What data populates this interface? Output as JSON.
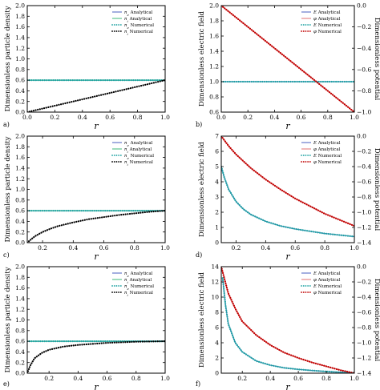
{
  "chart_data": [
    {
      "panel_label": "a)",
      "type": "line",
      "xlabel": "r",
      "ylabel": "Dimensionless particle density",
      "xlim": [
        0.0,
        1.0
      ],
      "ylim": [
        0.0,
        2.0
      ],
      "xticks": [
        "0.0",
        "0.2",
        "0.4",
        "0.6",
        "0.8",
        "1.0"
      ],
      "yticks": [
        "0.0",
        "0.2",
        "0.4",
        "0.6",
        "0.8",
        "1.0",
        "1.2",
        "1.4",
        "1.6",
        "1.8",
        "2.0"
      ],
      "legend_position": "upper-right",
      "series": [
        {
          "name": "n_e Analytical",
          "style": "solid",
          "color": "#4a5fc1",
          "axis": "left",
          "x": [
            0.0,
            0.2,
            0.4,
            0.6,
            0.8,
            1.0
          ],
          "y": [
            0.6,
            0.6,
            0.6,
            0.6,
            0.6,
            0.6
          ]
        },
        {
          "name": "n_i Analytical",
          "style": "solid",
          "color": "#3cb878",
          "axis": "left",
          "x": [
            0.0,
            0.2,
            0.4,
            0.6,
            0.8,
            1.0
          ],
          "y": [
            0.6,
            0.6,
            0.6,
            0.6,
            0.6,
            0.6
          ]
        },
        {
          "name": "n_e Numerical",
          "style": "dotted",
          "color": "#1fa3a3",
          "axis": "left",
          "x": [
            0.0,
            0.2,
            0.4,
            0.6,
            0.8,
            1.0
          ],
          "y": [
            0.6,
            0.6,
            0.6,
            0.6,
            0.6,
            0.6
          ]
        },
        {
          "name": "n_i Numerical",
          "style": "dotted",
          "color": "#000000",
          "axis": "left",
          "x": [
            0.0,
            0.2,
            0.4,
            0.6,
            0.8,
            1.0
          ],
          "y": [
            0.0,
            0.12,
            0.24,
            0.36,
            0.48,
            0.6
          ]
        }
      ]
    },
    {
      "panel_label": "b)",
      "type": "line",
      "xlabel": "r",
      "ylabel": "Dimensionless electric field",
      "ylabel_right": "Dimensionless potential",
      "xlim": [
        0.0,
        1.0
      ],
      "ylim": [
        0.6,
        2.0
      ],
      "ylim_right": [
        -1.0,
        0.0
      ],
      "xticks": [
        "0.0",
        "0.2",
        "0.4",
        "0.6",
        "0.8",
        "1.0"
      ],
      "yticks": [
        "0.6",
        "0.8",
        "1.0",
        "1.2",
        "1.4",
        "1.6",
        "1.8",
        "2.0"
      ],
      "yticks_right": [
        "0.0",
        "−0.2",
        "−0.4",
        "−0.6",
        "−0.8",
        "−1.0"
      ],
      "legend_position": "upper-right",
      "series": [
        {
          "name": "E Analytical",
          "style": "solid",
          "color": "#4a5fc1",
          "axis": "left",
          "x": [
            0.0,
            0.2,
            0.4,
            0.6,
            0.8,
            1.0
          ],
          "y": [
            1.0,
            1.0,
            1.0,
            1.0,
            1.0,
            1.0
          ]
        },
        {
          "name": "φ Analytical",
          "style": "solid",
          "color": "#e07070",
          "axis": "right",
          "x": [
            0.0,
            0.2,
            0.4,
            0.6,
            0.8,
            1.0
          ],
          "y": [
            0.0,
            -0.2,
            -0.4,
            -0.6,
            -0.8,
            -1.0
          ]
        },
        {
          "name": "E Numerical",
          "style": "dotted",
          "color": "#1fa3a3",
          "axis": "left",
          "x": [
            0.0,
            0.2,
            0.4,
            0.6,
            0.8,
            1.0
          ],
          "y": [
            1.0,
            1.0,
            1.0,
            1.0,
            1.0,
            1.0
          ]
        },
        {
          "name": "φ Numerical",
          "style": "dotted",
          "color": "#c00000",
          "axis": "right",
          "x": [
            0.0,
            0.2,
            0.4,
            0.6,
            0.8,
            1.0
          ],
          "y": [
            0.0,
            -0.2,
            -0.4,
            -0.6,
            -0.8,
            -1.0
          ]
        }
      ]
    },
    {
      "panel_label": "c)",
      "type": "line",
      "xlabel": "r",
      "ylabel": "Dimensionless particle density",
      "xlim": [
        0.1,
        1.0
      ],
      "ylim": [
        0.0,
        2.0
      ],
      "xticks": [
        "0.2",
        "0.4",
        "0.6",
        "0.8",
        "1.0"
      ],
      "yticks": [
        "0.0",
        "0.2",
        "0.4",
        "0.6",
        "0.8",
        "1.0",
        "1.2",
        "1.4",
        "1.6",
        "1.8",
        "2.0"
      ],
      "legend_position": "upper-right",
      "series": [
        {
          "name": "n_e Analytical",
          "style": "solid",
          "color": "#4a5fc1",
          "axis": "left",
          "x": [
            0.1,
            0.4,
            0.7,
            1.0
          ],
          "y": [
            0.6,
            0.6,
            0.6,
            0.6
          ]
        },
        {
          "name": "n_i Analytical",
          "style": "solid",
          "color": "#3cb878",
          "axis": "left",
          "x": [
            0.1,
            0.4,
            0.7,
            1.0
          ],
          "y": [
            0.6,
            0.6,
            0.6,
            0.6
          ]
        },
        {
          "name": "n_e Numerical",
          "style": "dotted",
          "color": "#1fa3a3",
          "axis": "left",
          "x": [
            0.1,
            0.4,
            0.7,
            1.0
          ],
          "y": [
            0.6,
            0.6,
            0.6,
            0.6
          ]
        },
        {
          "name": "n_i Numerical",
          "style": "dotted",
          "color": "#000000",
          "axis": "left",
          "x": [
            0.1,
            0.12,
            0.15,
            0.2,
            0.25,
            0.3,
            0.4,
            0.5,
            0.6,
            0.7,
            0.8,
            0.9,
            1.0
          ],
          "y": [
            0.0,
            0.05,
            0.12,
            0.2,
            0.26,
            0.31,
            0.38,
            0.44,
            0.48,
            0.52,
            0.55,
            0.58,
            0.6
          ]
        }
      ]
    },
    {
      "panel_label": "d)",
      "type": "line",
      "xlabel": "r",
      "ylabel": "Dimensionless electric field",
      "ylabel_right": "Dimensionless potential",
      "xlim": [
        0.1,
        1.0
      ],
      "ylim": [
        0,
        7
      ],
      "ylim_right": [
        -1.4,
        0.0
      ],
      "xticks": [
        "0.2",
        "0.4",
        "0.6",
        "0.8",
        "1.0"
      ],
      "yticks": [
        "0",
        "1",
        "2",
        "3",
        "4",
        "5",
        "6",
        "7"
      ],
      "yticks_right": [
        "0.0",
        "−0.2",
        "−0.4",
        "−0.6",
        "−0.8",
        "−1.0",
        "−1.2",
        "−1.4"
      ],
      "legend_position": "upper-right",
      "series": [
        {
          "name": "E Analytical",
          "style": "solid",
          "color": "#4a5fc1",
          "axis": "left",
          "x": [
            0.1,
            0.12,
            0.15,
            0.2,
            0.25,
            0.3,
            0.4,
            0.5,
            0.6,
            0.7,
            0.8,
            0.9,
            1.0
          ],
          "y": [
            5.0,
            4.3,
            3.5,
            2.7,
            2.2,
            1.85,
            1.4,
            1.1,
            0.9,
            0.75,
            0.6,
            0.5,
            0.4
          ]
        },
        {
          "name": "φ Analytical",
          "style": "solid",
          "color": "#e07070",
          "axis": "right",
          "x": [
            0.1,
            0.15,
            0.2,
            0.3,
            0.4,
            0.5,
            0.6,
            0.7,
            0.8,
            0.9,
            1.0
          ],
          "y": [
            0.0,
            -0.13,
            -0.24,
            -0.42,
            -0.57,
            -0.7,
            -0.82,
            -0.92,
            -1.02,
            -1.1,
            -1.18
          ]
        },
        {
          "name": "E Numerical",
          "style": "dotted",
          "color": "#1fa3a3",
          "axis": "left",
          "x": [
            0.1,
            0.12,
            0.15,
            0.2,
            0.25,
            0.3,
            0.4,
            0.5,
            0.6,
            0.7,
            0.8,
            0.9,
            1.0
          ],
          "y": [
            5.0,
            4.3,
            3.5,
            2.7,
            2.2,
            1.85,
            1.4,
            1.1,
            0.9,
            0.75,
            0.6,
            0.5,
            0.4
          ]
        },
        {
          "name": "φ Numerical",
          "style": "dotted",
          "color": "#c00000",
          "axis": "right",
          "x": [
            0.1,
            0.15,
            0.2,
            0.3,
            0.4,
            0.5,
            0.6,
            0.7,
            0.8,
            0.9,
            1.0
          ],
          "y": [
            0.0,
            -0.13,
            -0.24,
            -0.42,
            -0.57,
            -0.7,
            -0.82,
            -0.92,
            -1.02,
            -1.1,
            -1.18
          ]
        }
      ]
    },
    {
      "panel_label": "e)",
      "type": "line",
      "xlabel": "r",
      "ylabel": "Dimensionless particle density",
      "xlim": [
        0.05,
        1.0
      ],
      "ylim": [
        0.0,
        2.0
      ],
      "xticks": [
        "0.2",
        "0.4",
        "0.6",
        "0.8",
        "1.0"
      ],
      "yticks": [
        "0.0",
        "0.2",
        "0.4",
        "0.6",
        "0.8",
        "1.0",
        "1.2",
        "1.4",
        "1.6",
        "1.8",
        "2.0"
      ],
      "legend_position": "upper-right",
      "series": [
        {
          "name": "n_e Analytical",
          "style": "solid",
          "color": "#4a5fc1",
          "axis": "left",
          "x": [
            0.05,
            0.4,
            0.7,
            1.0
          ],
          "y": [
            0.6,
            0.6,
            0.6,
            0.6
          ]
        },
        {
          "name": "n_i Analytical",
          "style": "solid",
          "color": "#3cb878",
          "axis": "left",
          "x": [
            0.05,
            0.4,
            0.7,
            1.0
          ],
          "y": [
            0.6,
            0.6,
            0.6,
            0.6
          ]
        },
        {
          "name": "n_e Numerical",
          "style": "dotted",
          "color": "#1fa3a3",
          "axis": "left",
          "x": [
            0.05,
            0.4,
            0.7,
            1.0
          ],
          "y": [
            0.6,
            0.6,
            0.6,
            0.6
          ]
        },
        {
          "name": "n_i Numerical",
          "style": "dotted",
          "color": "#000000",
          "axis": "left",
          "x": [
            0.05,
            0.07,
            0.1,
            0.15,
            0.2,
            0.3,
            0.4,
            0.5,
            0.6,
            0.7,
            0.8,
            0.9,
            1.0
          ],
          "y": [
            0.0,
            0.14,
            0.28,
            0.38,
            0.44,
            0.5,
            0.53,
            0.55,
            0.57,
            0.58,
            0.59,
            0.595,
            0.6
          ]
        }
      ]
    },
    {
      "panel_label": "f)",
      "type": "line",
      "xlabel": "r",
      "ylabel": "Dimensionless electric field",
      "ylabel_right": "Dimensionless potential",
      "xlim": [
        0.05,
        1.0
      ],
      "ylim": [
        0,
        14
      ],
      "ylim_right": [
        -1.4,
        0.0
      ],
      "xticks": [
        "0.2",
        "0.4",
        "0.6",
        "0.8",
        "1.0"
      ],
      "yticks": [
        "0",
        "2",
        "4",
        "6",
        "8",
        "10",
        "12",
        "14"
      ],
      "yticks_right": [
        "0.0",
        "−0.2",
        "−0.4",
        "−0.6",
        "−0.8",
        "−1.0",
        "−1.2",
        "−1.4"
      ],
      "legend_position": "upper-right",
      "series": [
        {
          "name": "E Analytical",
          "style": "solid",
          "color": "#4a5fc1",
          "axis": "left",
          "x": [
            0.06,
            0.08,
            0.1,
            0.15,
            0.2,
            0.3,
            0.4,
            0.5,
            0.6,
            0.7,
            0.8,
            0.9,
            1.0
          ],
          "y": [
            12.5,
            9.0,
            6.5,
            4.0,
            2.8,
            1.6,
            1.05,
            0.7,
            0.5,
            0.35,
            0.22,
            0.12,
            0.05
          ]
        },
        {
          "name": "φ Analytical",
          "style": "solid",
          "color": "#e07070",
          "axis": "right",
          "x": [
            0.05,
            0.1,
            0.15,
            0.2,
            0.3,
            0.4,
            0.5,
            0.6,
            0.7,
            0.8,
            0.9,
            1.0
          ],
          "y": [
            0.0,
            -0.35,
            -0.55,
            -0.72,
            -0.9,
            -1.03,
            -1.13,
            -1.2,
            -1.26,
            -1.31,
            -1.36,
            -1.4
          ]
        },
        {
          "name": "E Numerical",
          "style": "dotted",
          "color": "#1fa3a3",
          "axis": "left",
          "x": [
            0.06,
            0.08,
            0.1,
            0.15,
            0.2,
            0.3,
            0.4,
            0.5,
            0.6,
            0.7,
            0.8,
            0.9,
            1.0
          ],
          "y": [
            12.5,
            9.0,
            6.5,
            4.0,
            2.8,
            1.6,
            1.05,
            0.7,
            0.5,
            0.35,
            0.22,
            0.12,
            0.05
          ]
        },
        {
          "name": "φ Numerical",
          "style": "dotted",
          "color": "#c00000",
          "axis": "right",
          "x": [
            0.05,
            0.1,
            0.15,
            0.2,
            0.3,
            0.4,
            0.5,
            0.6,
            0.7,
            0.8,
            0.9,
            1.0
          ],
          "y": [
            0.0,
            -0.35,
            -0.55,
            -0.72,
            -0.9,
            -1.03,
            -1.13,
            -1.2,
            -1.26,
            -1.31,
            -1.36,
            -1.4
          ]
        }
      ]
    }
  ]
}
